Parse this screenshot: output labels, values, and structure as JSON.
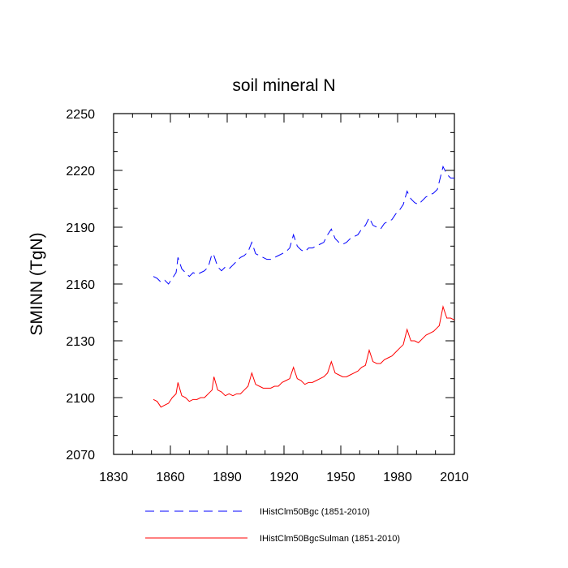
{
  "chart_data": {
    "type": "line",
    "title": "soil mineral N",
    "xlabel": "",
    "ylabel": "SMINN  (TgN)",
    "xlim": [
      1830,
      2010
    ],
    "ylim": [
      2070,
      2250
    ],
    "xticks": [
      1830,
      1860,
      1890,
      1920,
      1950,
      1980,
      2010
    ],
    "yticks": [
      2070,
      2100,
      2130,
      2160,
      2190,
      2220,
      2250
    ],
    "grid": false,
    "legend_position": "bottom",
    "series": [
      {
        "name": "IHistClm50Bgc (1851-2010)",
        "color": "#0000ff",
        "dash": "dashed",
        "x": [
          1851,
          1853,
          1855,
          1857,
          1859,
          1861,
          1863,
          1864,
          1866,
          1868,
          1870,
          1872,
          1874,
          1876,
          1878,
          1880,
          1882,
          1883,
          1885,
          1887,
          1889,
          1891,
          1893,
          1895,
          1897,
          1899,
          1901,
          1903,
          1905,
          1907,
          1909,
          1911,
          1913,
          1915,
          1917,
          1919,
          1921,
          1923,
          1925,
          1927,
          1929,
          1931,
          1933,
          1935,
          1937,
          1939,
          1941,
          1943,
          1945,
          1947,
          1949,
          1951,
          1953,
          1955,
          1957,
          1959,
          1961,
          1963,
          1965,
          1967,
          1969,
          1971,
          1973,
          1975,
          1977,
          1979,
          1981,
          1983,
          1985,
          1987,
          1989,
          1991,
          1993,
          1995,
          1997,
          1999,
          2001,
          2002,
          2004,
          2006,
          2008,
          2010
        ],
        "values": [
          2164,
          2163,
          2161,
          2162,
          2160,
          2163,
          2166,
          2174,
          2168,
          2166,
          2164,
          2166,
          2165,
          2166,
          2167,
          2169,
          2176,
          2175,
          2169,
          2167,
          2169,
          2168,
          2170,
          2172,
          2174,
          2175,
          2177,
          2182,
          2176,
          2175,
          2174,
          2173,
          2173,
          2174,
          2175,
          2176,
          2177,
          2179,
          2186,
          2180,
          2178,
          2177,
          2179,
          2179,
          2180,
          2181,
          2182,
          2186,
          2189,
          2184,
          2182,
          2181,
          2182,
          2184,
          2185,
          2186,
          2189,
          2191,
          2195,
          2191,
          2190,
          2189,
          2192,
          2193,
          2194,
          2197,
          2199,
          2202,
          2209,
          2205,
          2203,
          2202,
          2204,
          2206,
          2207,
          2208,
          2210,
          2214,
          2222,
          2218,
          2216,
          2216
        ]
      },
      {
        "name": "IHistClm50BgcSulman (1851-2010)",
        "color": "#ff0000",
        "dash": "solid",
        "x": [
          1851,
          1853,
          1855,
          1857,
          1859,
          1861,
          1863,
          1864,
          1866,
          1868,
          1870,
          1872,
          1874,
          1876,
          1878,
          1880,
          1882,
          1883,
          1885,
          1887,
          1889,
          1891,
          1893,
          1895,
          1897,
          1899,
          1901,
          1903,
          1905,
          1907,
          1909,
          1911,
          1913,
          1915,
          1917,
          1919,
          1921,
          1923,
          1925,
          1927,
          1929,
          1931,
          1933,
          1935,
          1937,
          1939,
          1941,
          1943,
          1945,
          1947,
          1949,
          1951,
          1953,
          1955,
          1957,
          1959,
          1961,
          1963,
          1965,
          1967,
          1969,
          1971,
          1973,
          1975,
          1977,
          1979,
          1981,
          1983,
          1985,
          1987,
          1989,
          1991,
          1993,
          1995,
          1997,
          1999,
          2001,
          2002,
          2004,
          2006,
          2008,
          2010
        ],
        "values": [
          2099,
          2098,
          2095,
          2096,
          2097,
          2100,
          2102,
          2108,
          2101,
          2100,
          2098,
          2099,
          2099,
          2100,
          2100,
          2102,
          2104,
          2111,
          2104,
          2103,
          2101,
          2102,
          2101,
          2102,
          2102,
          2104,
          2106,
          2113,
          2107,
          2106,
          2105,
          2105,
          2105,
          2106,
          2106,
          2108,
          2109,
          2110,
          2116,
          2110,
          2109,
          2107,
          2108,
          2108,
          2109,
          2110,
          2111,
          2113,
          2119,
          2113,
          2112,
          2111,
          2111,
          2112,
          2113,
          2114,
          2116,
          2117,
          2125,
          2119,
          2118,
          2118,
          2120,
          2121,
          2122,
          2124,
          2126,
          2128,
          2136,
          2130,
          2130,
          2129,
          2131,
          2133,
          2134,
          2135,
          2137,
          2138,
          2148,
          2142,
          2142,
          2141
        ]
      }
    ]
  }
}
